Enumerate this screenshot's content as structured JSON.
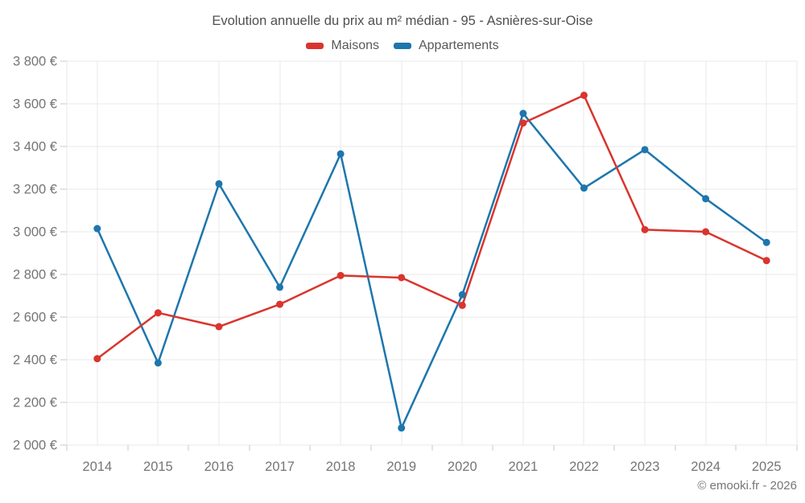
{
  "chart": {
    "title": "Evolution annuelle du prix au m² médian - 95 - Asnières-sur-Oise",
    "footer": "© emooki.fr - 2026",
    "legend": [
      {
        "label": "Maisons",
        "color": "#d9352e"
      },
      {
        "label": "Appartements",
        "color": "#1d76ad"
      }
    ]
  },
  "chart_data": {
    "type": "line",
    "title": "Evolution annuelle du prix au m² médian - 95 - Asnières-sur-Oise",
    "categories": [
      "2014",
      "2015",
      "2016",
      "2017",
      "2018",
      "2019",
      "2020",
      "2021",
      "2022",
      "2023",
      "2024",
      "2025"
    ],
    "series": [
      {
        "name": "Maisons",
        "color": "#d9352e",
        "values": [
          2405,
          2620,
          2555,
          2660,
          2795,
          2785,
          2655,
          3510,
          3640,
          3010,
          3000,
          2865
        ]
      },
      {
        "name": "Appartements",
        "color": "#1d76ad",
        "values": [
          3015,
          2385,
          3225,
          2740,
          3365,
          2080,
          2705,
          3555,
          3205,
          3385,
          3155,
          2950
        ]
      }
    ],
    "xlabel": "",
    "ylabel": "",
    "ylim": [
      2000,
      3800
    ],
    "ytick_step": 200,
    "ytick_suffix": " €",
    "grid": true,
    "legend_position": "top",
    "marker_radius": 4.5,
    "line_width": 2.5,
    "colors": {
      "gridline": "#e9e9e9",
      "tick": "#c9c9c9",
      "axis_label": "#757575",
      "title": "#4f4f4f",
      "legend_text": "#585858",
      "footer": "#757575"
    }
  }
}
